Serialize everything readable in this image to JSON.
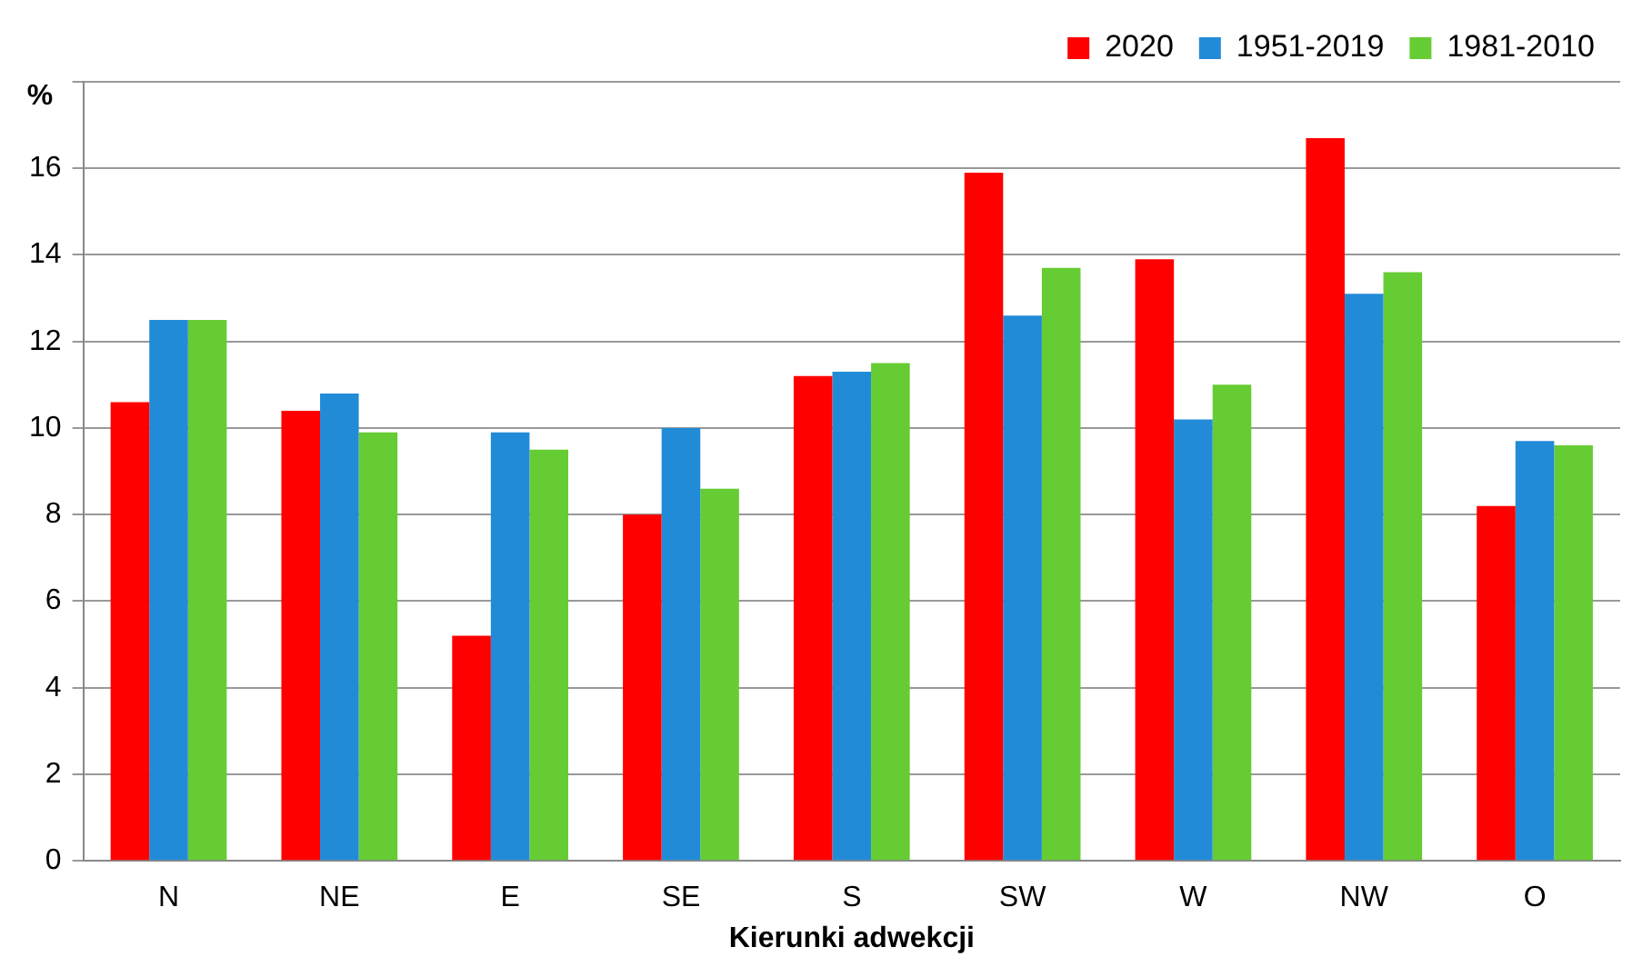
{
  "chart_data": {
    "type": "bar",
    "ylabel": "%",
    "xlabel": "Kierunki adwekcji",
    "categories": [
      "N",
      "NE",
      "E",
      "SE",
      "S",
      "SW",
      "W",
      "NW",
      "O"
    ],
    "series": [
      {
        "name": "2020",
        "color": "#ff0000",
        "values": [
          10.6,
          10.4,
          5.2,
          8.0,
          11.2,
          15.9,
          13.9,
          16.7,
          8.2
        ]
      },
      {
        "name": "1951-2019",
        "color": "#228bd8",
        "values": [
          12.5,
          10.8,
          9.9,
          10.0,
          11.3,
          12.6,
          10.2,
          13.1,
          9.7
        ]
      },
      {
        "name": "1981-2010",
        "color": "#66cc33",
        "values": [
          12.5,
          9.9,
          9.5,
          8.6,
          11.5,
          13.7,
          11.0,
          13.6,
          9.6
        ]
      }
    ],
    "ylim": [
      0,
      18
    ],
    "yticks": [
      0,
      2,
      4,
      6,
      8,
      10,
      12,
      14,
      16,
      {
        "value": 18,
        "label": null
      }
    ],
    "grid": "y",
    "legend": "top right"
  }
}
